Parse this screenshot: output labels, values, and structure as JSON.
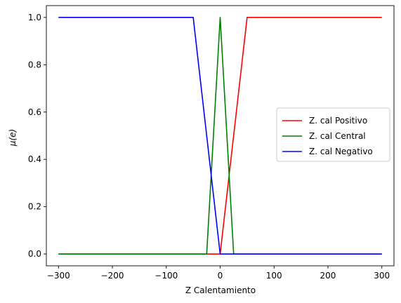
{
  "chart_data": {
    "type": "line",
    "xlabel": "Z Calentamiento",
    "ylabel": "μ(e)",
    "xlim": [
      -322.5,
      322.5
    ],
    "ylim": [
      -0.05,
      1.05
    ],
    "xticks": [
      -300,
      -200,
      -100,
      0,
      100,
      200,
      300
    ],
    "xtick_labels": [
      "−300",
      "−200",
      "−100",
      "0",
      "100",
      "200",
      "300"
    ],
    "yticks": [
      0.0,
      0.2,
      0.4,
      0.6,
      0.8,
      1.0
    ],
    "ytick_labels": [
      "0.0",
      "0.2",
      "0.4",
      "0.6",
      "0.8",
      "1.0"
    ],
    "grid": false,
    "legend_position": "center-right",
    "series": [
      {
        "name": "Z. cal Positivo",
        "color": "#ff0000",
        "x": [
          -300,
          0,
          50,
          300
        ],
        "y": [
          0,
          0,
          1,
          1
        ]
      },
      {
        "name": "Z. cal Central",
        "color": "#008000",
        "x": [
          -300,
          -25,
          0,
          25,
          300
        ],
        "y": [
          0,
          0,
          1,
          0,
          0
        ]
      },
      {
        "name": "Z. cal Negativo",
        "color": "#0000ff",
        "x": [
          -300,
          -50,
          0,
          300
        ],
        "y": [
          1,
          1,
          0,
          0
        ]
      }
    ]
  }
}
